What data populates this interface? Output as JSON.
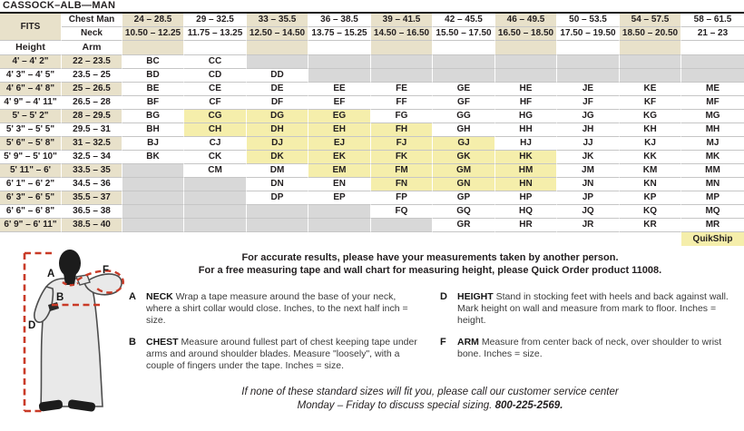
{
  "title": "CASSOCK–ALB—MAN",
  "colors": {
    "tan": "#e8e1ca",
    "quikship_yellow": "#f5eeab",
    "unavailable_gray": "#d8d8d8",
    "dash_red": "#c93a27"
  },
  "table": {
    "fits_label": "FITS",
    "chest_label": "Chest Man",
    "neck_label": "Neck",
    "height_label": "Height",
    "arm_label": "Arm",
    "chest_ranges": [
      "24 – 28.5",
      "29 – 32.5",
      "33 – 35.5",
      "36 – 38.5",
      "39 – 41.5",
      "42 – 45.5",
      "46 – 49.5",
      "50 – 53.5",
      "54 – 57.5",
      "58 – 61.5"
    ],
    "neck_ranges": [
      "10.50 – 12.25",
      "11.75 – 13.25",
      "12.50 – 14.50",
      "13.75 – 15.25",
      "14.50 – 16.50",
      "15.50 – 17.50",
      "16.50 – 18.50",
      "17.50 – 19.50",
      "18.50 – 20.50",
      "21 – 23"
    ],
    "cell_encoding": "string = size code, suffix * = QuikShip (yellow), null = not available (gray)",
    "rows": [
      {
        "h": "4' – 4' 2\"",
        "a": "22 – 23.5",
        "c": [
          "BC",
          "CC",
          null,
          null,
          null,
          null,
          null,
          null,
          null,
          null
        ]
      },
      {
        "h": "4' 3\" – 4' 5\"",
        "a": "23.5 – 25",
        "c": [
          "BD",
          "CD",
          "DD",
          null,
          null,
          null,
          null,
          null,
          null,
          null
        ]
      },
      {
        "h": "4' 6\" – 4' 8\"",
        "a": "25 – 26.5",
        "c": [
          "BE",
          "CE",
          "DE",
          "EE",
          "FE",
          "GE",
          "HE",
          "JE",
          "KE",
          "ME"
        ]
      },
      {
        "h": "4' 9\" – 4' 11\"",
        "a": "26.5 – 28",
        "c": [
          "BF",
          "CF",
          "DF",
          "EF",
          "FF",
          "GF",
          "HF",
          "JF",
          "KF",
          "MF"
        ]
      },
      {
        "h": "5' – 5' 2\"",
        "a": "28 – 29.5",
        "c": [
          "BG",
          "CG*",
          "DG*",
          "EG*",
          "FG",
          "GG",
          "HG",
          "JG",
          "KG",
          "MG"
        ]
      },
      {
        "h": "5' 3\" – 5' 5\"",
        "a": "29.5 – 31",
        "c": [
          "BH",
          "CH*",
          "DH*",
          "EH*",
          "FH*",
          "GH",
          "HH",
          "JH",
          "KH",
          "MH"
        ]
      },
      {
        "h": "5' 6\" – 5' 8\"",
        "a": "31 – 32.5",
        "c": [
          "BJ",
          "CJ",
          "DJ*",
          "EJ*",
          "FJ*",
          "GJ*",
          "HJ",
          "JJ",
          "KJ",
          "MJ"
        ]
      },
      {
        "h": "5' 9\" – 5' 10\"",
        "a": "32.5 – 34",
        "c": [
          "BK",
          "CK",
          "DK*",
          "EK*",
          "FK*",
          "GK*",
          "HK*",
          "JK",
          "KK",
          "MK"
        ]
      },
      {
        "h": "5' 11\" – 6'",
        "a": "33.5 – 35",
        "c": [
          null,
          "CM",
          "DM",
          "EM*",
          "FM*",
          "GM*",
          "HM*",
          "JM",
          "KM",
          "MM"
        ]
      },
      {
        "h": "6' 1\" – 6' 2\"",
        "a": "34.5 – 36",
        "c": [
          null,
          null,
          "DN",
          "EN",
          "FN*",
          "GN*",
          "HN*",
          "JN",
          "KN",
          "MN"
        ]
      },
      {
        "h": "6' 3\" – 6' 5\"",
        "a": "35.5 – 37",
        "c": [
          null,
          null,
          "DP",
          "EP",
          "FP",
          "GP",
          "HP",
          "JP",
          "KP",
          "MP"
        ]
      },
      {
        "h": "6' 6\" – 6' 8\"",
        "a": "36.5 – 38",
        "c": [
          null,
          null,
          null,
          null,
          "FQ",
          "GQ",
          "HQ",
          "JQ",
          "KQ",
          "MQ"
        ]
      },
      {
        "h": "6' 9\" – 6' 11\"",
        "a": "38.5 – 40",
        "c": [
          null,
          null,
          null,
          null,
          null,
          "GR",
          "HR",
          "JR",
          "KR",
          "MR"
        ]
      }
    ],
    "quikship_label": "QuikShip"
  },
  "intro": {
    "line1": "For accurate results, please have your measurements taken by another person.",
    "line2": "For a free measuring tape and wall chart for measuring height, please Quick Order product 11008."
  },
  "instructions": {
    "columns": [
      [
        {
          "letter": "A",
          "term": "NECK",
          "text": "Wrap a tape measure around the base of your neck, where a shirt collar would close. Inches, to the next half inch = size."
        },
        {
          "letter": "B",
          "term": "CHEST",
          "text": "Measure around fullest part of chest keeping tape under arms and around shoulder blades. Measure \"loosely\", with a couple of fingers under the tape. Inches = size."
        }
      ],
      [
        {
          "letter": "D",
          "term": "HEIGHT",
          "text": "Stand in stocking feet with heels and back against wall. Mark height on wall and measure from mark to floor. Inches = height."
        },
        {
          "letter": "F",
          "term": "ARM",
          "text": "Measure from center back of neck, over shoulder to wrist bone. Inches = size."
        }
      ]
    ]
  },
  "footer": {
    "line1": "If none of these standard sizes will fit you, please call our customer service center",
    "line2": "Monday – Friday to discuss special sizing.",
    "phone": "800-225-2569."
  },
  "figure": {
    "labels": {
      "a": "A",
      "b": "B",
      "d": "D",
      "f": "F"
    }
  }
}
